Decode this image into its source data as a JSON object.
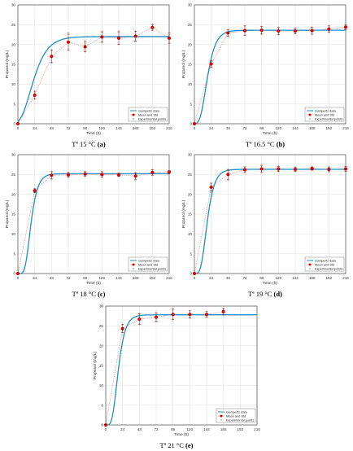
{
  "chart_data": [
    {
      "type": "line",
      "caption": "Tª 15 °C",
      "caption_tag": "(a)",
      "xlabel": "Time (h)",
      "ylabel": "Propanol (mg/L)",
      "xlim": [
        0,
        216
      ],
      "ylim": [
        0,
        30
      ],
      "xticks": [
        0,
        24,
        48,
        72,
        96,
        120,
        144,
        168,
        192,
        216
      ],
      "yticks": [
        0,
        5,
        10,
        15,
        20,
        25,
        30
      ],
      "grid": true,
      "legend_position": "bottom-right",
      "legend": [
        "Gompertz data",
        "Mean and Std",
        "Experimental points"
      ],
      "gompertz": {
        "A": 22.0,
        "mu": 0.6,
        "lambda": 4
      },
      "series": [
        {
          "name": "Mean and Std",
          "x": [
            0,
            24,
            48,
            72,
            96,
            120,
            144,
            168,
            192,
            216
          ],
          "y": [
            0,
            7.2,
            17.0,
            20.6,
            19.4,
            21.9,
            21.6,
            22.1,
            24.3,
            21.6
          ],
          "std": [
            0,
            1.0,
            1.5,
            2.0,
            1.2,
            1.3,
            1.6,
            1.2,
            0.7,
            1.3
          ]
        },
        {
          "name": "Experimental points",
          "x": [
            0,
            0,
            24,
            24,
            24,
            48,
            48,
            48,
            72,
            72,
            72,
            96,
            96,
            96,
            120,
            120,
            120,
            144,
            144,
            144,
            168,
            168,
            168,
            192,
            192,
            192,
            216,
            216,
            216
          ],
          "y": [
            0,
            0,
            6.2,
            7.3,
            8.2,
            15.3,
            17.2,
            18.6,
            18.6,
            20.8,
            22.9,
            18.2,
            19.8,
            20.9,
            20.5,
            21.9,
            23.3,
            20.0,
            21.7,
            23.4,
            20.8,
            22.1,
            23.3,
            23.6,
            24.2,
            25.0,
            20.3,
            21.7,
            23.0
          ]
        }
      ]
    },
    {
      "type": "line",
      "caption": "Tª 16.5 °C",
      "caption_tag": "(b)",
      "xlabel": "Time (h)",
      "ylabel": "Propanol (mg/L)",
      "xlim": [
        0,
        216
      ],
      "ylim": [
        0,
        30
      ],
      "xticks": [
        0,
        24,
        48,
        72,
        96,
        120,
        144,
        168,
        192,
        216
      ],
      "yticks": [
        0,
        5,
        10,
        15,
        20,
        25,
        30
      ],
      "grid": true,
      "legend_position": "bottom-right",
      "legend": [
        "Gompertz data",
        "Mean and Std",
        "Experimental points"
      ],
      "gompertz": {
        "A": 23.6,
        "mu": 1.1,
        "lambda": 8
      },
      "series": [
        {
          "name": "Mean and Std",
          "x": [
            0,
            24,
            48,
            72,
            96,
            120,
            144,
            168,
            192,
            216
          ],
          "y": [
            0,
            15.1,
            22.9,
            23.5,
            23.6,
            23.4,
            23.4,
            23.5,
            23.9,
            24.4
          ],
          "std": [
            0,
            0.8,
            0.8,
            1.2,
            1.0,
            0.9,
            0.7,
            0.9,
            0.8,
            0.6
          ]
        },
        {
          "name": "Experimental points",
          "x": [
            0,
            24,
            24,
            24,
            48,
            48,
            48,
            72,
            72,
            72,
            96,
            96,
            96,
            120,
            120,
            120,
            144,
            144,
            144,
            168,
            168,
            168,
            192,
            192,
            192,
            216,
            216,
            216
          ],
          "y": [
            0,
            14.2,
            15.1,
            15.9,
            22.1,
            23.0,
            23.7,
            22.4,
            23.5,
            24.7,
            22.7,
            23.6,
            24.6,
            22.5,
            23.4,
            24.3,
            22.8,
            23.4,
            24.1,
            22.6,
            23.5,
            24.4,
            23.1,
            23.9,
            24.7,
            23.8,
            24.4,
            25.0
          ]
        }
      ]
    },
    {
      "type": "line",
      "caption": "Tª 18 °C",
      "caption_tag": "(c)",
      "xlabel": "Time (h)",
      "ylabel": "Propanol (mg/L)",
      "xlim": [
        0,
        216
      ],
      "ylim": [
        0,
        30
      ],
      "xticks": [
        0,
        24,
        48,
        72,
        96,
        120,
        144,
        168,
        192,
        216
      ],
      "yticks": [
        0,
        5,
        10,
        15,
        20,
        25,
        30
      ],
      "grid": true,
      "legend_position": "bottom-right",
      "legend": [
        "Gompertz data",
        "Mean and Std",
        "Experimental points"
      ],
      "gompertz": {
        "A": 25.2,
        "mu": 1.45,
        "lambda": 10
      },
      "series": [
        {
          "name": "Mean and Std",
          "x": [
            0,
            24,
            48,
            72,
            96,
            120,
            144,
            168,
            192,
            216
          ],
          "y": [
            0,
            20.9,
            24.8,
            24.9,
            25.1,
            25.0,
            24.9,
            24.6,
            25.5,
            25.6
          ],
          "std": [
            0,
            0.5,
            0.9,
            0.6,
            0.6,
            0.7,
            0.4,
            0.8,
            0.7,
            0.4
          ]
        },
        {
          "name": "Experimental points",
          "x": [
            0,
            24,
            24,
            24,
            48,
            48,
            48,
            72,
            72,
            72,
            96,
            96,
            96,
            120,
            120,
            120,
            144,
            144,
            144,
            168,
            168,
            168,
            192,
            192,
            192,
            216,
            216,
            216
          ],
          "y": [
            0,
            20.4,
            20.9,
            21.4,
            23.8,
            24.8,
            25.7,
            24.3,
            24.9,
            25.5,
            24.5,
            25.1,
            25.7,
            24.3,
            25.0,
            25.7,
            24.5,
            24.9,
            25.3,
            23.6,
            24.6,
            25.4,
            24.8,
            25.5,
            26.2,
            25.2,
            25.6,
            26.0
          ]
        }
      ]
    },
    {
      "type": "line",
      "caption": "Tª 19 °C",
      "caption_tag": "(d)",
      "xlabel": "Time (h)",
      "ylabel": "Propanol (mg/L)",
      "xlim": [
        0,
        216
      ],
      "ylim": [
        0,
        30
      ],
      "xticks": [
        0,
        24,
        48,
        72,
        96,
        120,
        144,
        168,
        192,
        216
      ],
      "yticks": [
        0,
        5,
        10,
        15,
        20,
        25,
        30
      ],
      "grid": true,
      "legend_position": "bottom-right",
      "legend": [
        "Gompertz data",
        "Mean and Std",
        "Experimental points"
      ],
      "gompertz": {
        "A": 26.3,
        "mu": 1.4,
        "lambda": 9
      },
      "series": [
        {
          "name": "Mean and Std",
          "x": [
            0,
            24,
            48,
            72,
            96,
            120,
            144,
            168,
            192,
            216
          ],
          "y": [
            0,
            21.8,
            25.0,
            26.2,
            26.4,
            26.4,
            26.3,
            26.5,
            26.3,
            26.4
          ],
          "std": [
            0,
            1.0,
            1.2,
            0.7,
            0.9,
            0.6,
            0.5,
            0.4,
            0.6,
            0.6
          ]
        },
        {
          "name": "Experimental points",
          "x": [
            0,
            24,
            24,
            24,
            48,
            48,
            48,
            72,
            72,
            72,
            96,
            96,
            96,
            120,
            120,
            120,
            144,
            144,
            144,
            168,
            168,
            168,
            192,
            192,
            192,
            216,
            216,
            216
          ],
          "y": [
            0,
            20.7,
            21.8,
            22.8,
            23.6,
            25.0,
            26.3,
            25.5,
            26.2,
            26.9,
            25.5,
            26.4,
            27.3,
            25.8,
            26.4,
            27.0,
            25.8,
            26.3,
            26.8,
            26.1,
            26.5,
            26.9,
            25.7,
            26.3,
            26.9,
            25.8,
            26.4,
            27.0
          ]
        }
      ]
    },
    {
      "type": "line",
      "caption": "Tª 21 °C",
      "caption_tag": "(e)",
      "xlabel": "Time (h)",
      "ylabel": "Propanol (mg/L)",
      "xlim": [
        0,
        216
      ],
      "ylim": [
        0,
        30
      ],
      "xticks": [
        0,
        24,
        48,
        72,
        96,
        120,
        144,
        168,
        192,
        216
      ],
      "yticks": [
        0,
        5,
        10,
        15,
        20,
        25,
        30
      ],
      "grid": true,
      "legend_position": "bottom-right",
      "legend": [
        "Gompertz data",
        "Mean and Std",
        "Experimental points"
      ],
      "gompertz": {
        "A": 27.8,
        "mu": 1.55,
        "lambda": 9
      },
      "series": [
        {
          "name": "Mean and Std",
          "x": [
            0,
            24,
            48,
            72,
            96,
            120,
            144,
            168
          ],
          "y": [
            0,
            24.3,
            26.7,
            27.2,
            27.9,
            27.9,
            27.9,
            28.6
          ],
          "std": [
            0,
            1.0,
            1.3,
            1.0,
            1.3,
            0.9,
            0.7,
            0.8
          ]
        },
        {
          "name": "Experimental points",
          "x": [
            0,
            24,
            24,
            24,
            48,
            48,
            48,
            72,
            72,
            72,
            96,
            96,
            96,
            120,
            120,
            120,
            144,
            144,
            144,
            168,
            168,
            168
          ],
          "y": [
            0,
            23.3,
            24.3,
            25.4,
            25.4,
            26.7,
            28.1,
            26.2,
            27.2,
            28.3,
            26.6,
            27.9,
            29.3,
            27.0,
            27.9,
            28.8,
            27.2,
            27.9,
            28.6,
            27.8,
            28.6,
            29.3
          ]
        }
      ]
    }
  ]
}
